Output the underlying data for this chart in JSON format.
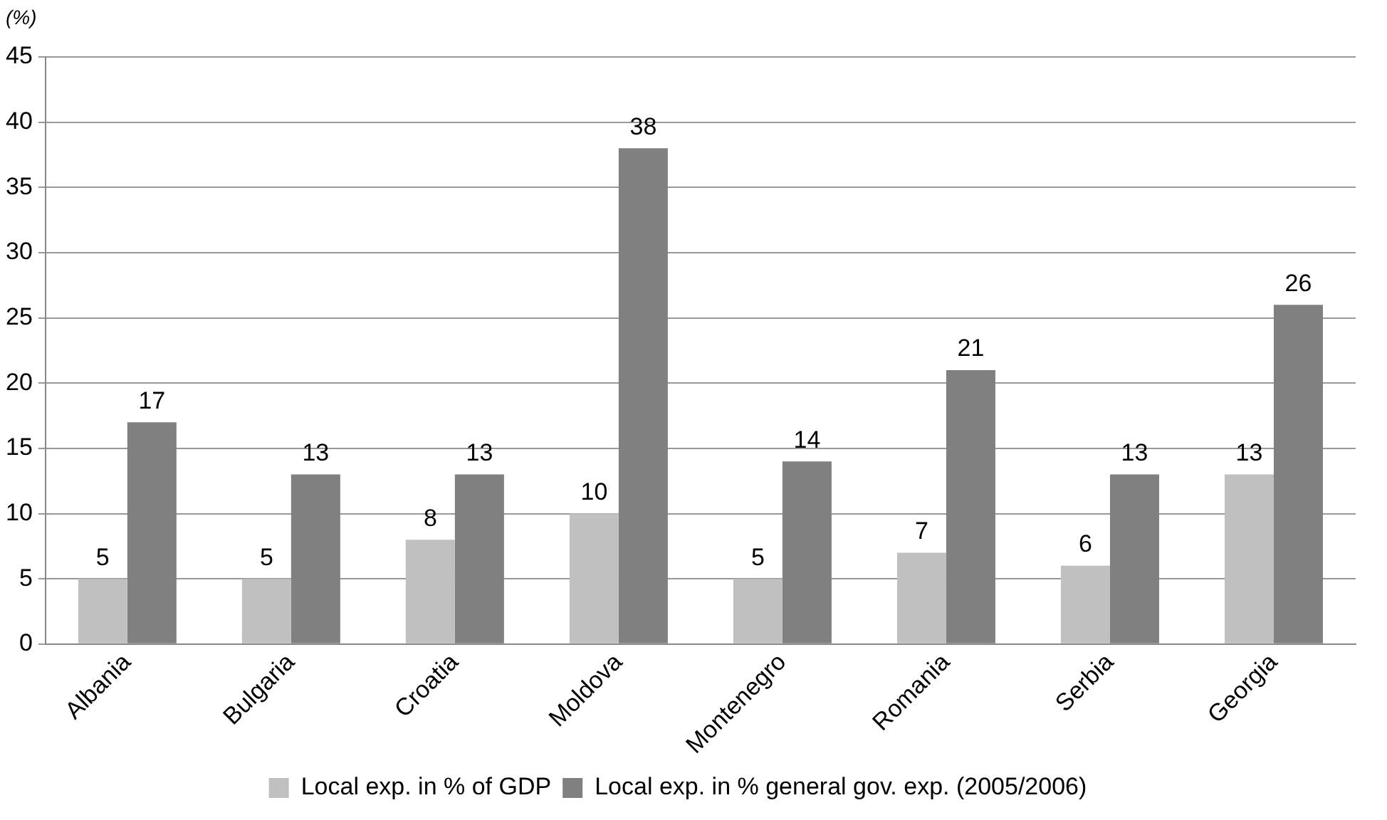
{
  "chart_data": {
    "type": "bar",
    "ylabel": "(%)",
    "categories": [
      "Albania",
      "Bulgaria",
      "Croatia",
      "Moldova",
      "Montenegro",
      "Romania",
      "Serbia",
      "Georgia"
    ],
    "series": [
      {
        "name": "Local exp. in % of GDP",
        "color": "#c0c0c0",
        "values": [
          5,
          5,
          8,
          10,
          5,
          7,
          6,
          13
        ]
      },
      {
        "name": "Local exp. in % general gov. exp. (2005/2006)",
        "color": "#808080",
        "values": [
          17,
          13,
          13,
          38,
          14,
          21,
          13,
          26
        ]
      }
    ],
    "ylim": [
      0,
      45
    ],
    "yticks": [
      0,
      5,
      10,
      15,
      20,
      25,
      30,
      35,
      40,
      45
    ],
    "grid": "y",
    "legend": "bottom",
    "data_labels": true
  }
}
